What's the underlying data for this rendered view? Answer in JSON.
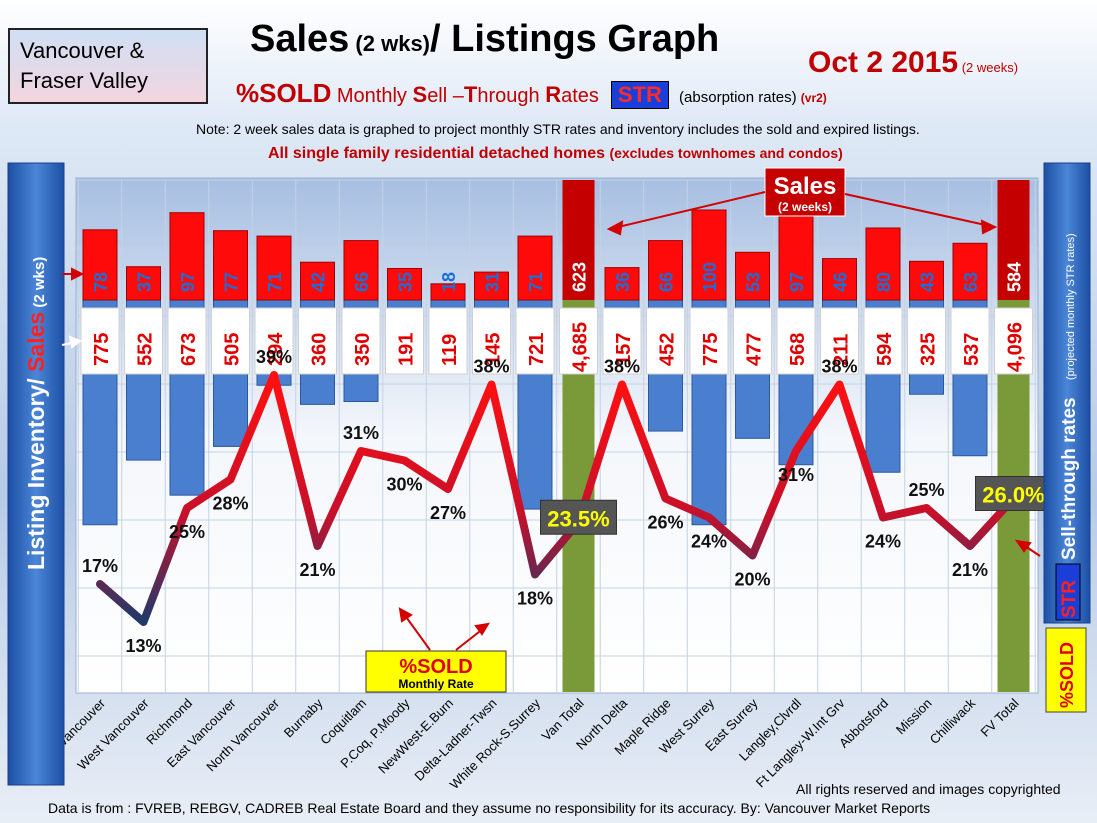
{
  "header": {
    "region": [
      "Vancouver &",
      "Fraser Valley"
    ],
    "title_main": "Sales",
    "title_small": " (2 wks)",
    "title_rest": "/ Listings Graph",
    "date_main": "Oct 2 2015",
    "date_small": " (2 weeks)",
    "subtitle_sold": "%SOLD",
    "subtitle_monthly": " Monthly ",
    "subtitle_s": "S",
    "subtitle_ell": "ell –",
    "subtitle_t": "T",
    "subtitle_hrough": "hrough ",
    "subtitle_r": "R",
    "subtitle_ates": "ates",
    "str_badge": "STR",
    "absorption": " (absorption rates) ",
    "version": "(vr2)",
    "note": "Note: 2 week sales data is graphed to project monthly STR rates and inventory includes the sold and expired listings.",
    "scope_main": "All single family residential detached homes ",
    "scope_small": "(excludes townhomes and condos)"
  },
  "footer": {
    "rights": "All rights reserved and  images copyrighted",
    "source": "Data is from : FVREB, REBGV, CADREB Real Estate Board and they assume no responsibility  for its accuracy. By: Vancouver Market Reports"
  },
  "colors": {
    "sales_bar": "#ff0a0a",
    "total_sales_bar": "#c40000",
    "inventory_bar": "#4a7fcf",
    "total_inventory_bar": "#7a9a3a",
    "line_high": "#ff1010",
    "line_low": "#2a3a6a",
    "panel": "#2e5fb5"
  },
  "chart_data": {
    "type": "bar",
    "categories": [
      "Vancouver",
      "West Vancouver",
      "Richmond",
      "East Vancouver",
      "North Vancouver",
      "Burnaby",
      "Coquitlam",
      "P.Coq, P.Moody",
      "NewWest-E.Burn",
      "Delta-Ladner-Twsn",
      "White Rock-S.Surrey",
      "Van Total",
      "North Delta",
      "Maple Ridge",
      "West Surrey",
      "East Surrey",
      "Langley,Clvrdl",
      "Ft Langley-W.Int Grv",
      "Abbotsford",
      "Mission",
      "Chilliwack",
      "FV Total"
    ],
    "series": [
      {
        "name": "Sales",
        "values": [
          78,
          37,
          97,
          77,
          71,
          42,
          66,
          35,
          18,
          31,
          71,
          623,
          36,
          66,
          100,
          53,
          97,
          46,
          80,
          43,
          63,
          584
        ]
      },
      {
        "name": "Listing Inventory",
        "values": [
          775,
          552,
          673,
          505,
          294,
          360,
          350,
          191,
          119,
          145,
          721,
          4685,
          157,
          452,
          775,
          477,
          568,
          211,
          594,
          325,
          537,
          4096
        ]
      },
      {
        "name": "%SOLD",
        "values": [
          17,
          13,
          25,
          28,
          39,
          21,
          31,
          30,
          27,
          38,
          18,
          23.5,
          38,
          26,
          24,
          20,
          31,
          38,
          24,
          25,
          21,
          26.0
        ]
      }
    ],
    "inventory_labels": [
      "775",
      "552",
      "673",
      "505",
      "294",
      "360",
      "350",
      "191",
      "119",
      "145",
      "721",
      "4,685",
      "157",
      "452",
      "775",
      "477",
      "568",
      "211",
      "594",
      "325",
      "537",
      "4,096"
    ],
    "percent_labels": [
      "17%",
      "13%",
      "25%",
      "28%",
      "39%",
      "21%",
      "31%",
      "30%",
      "27%",
      "38%",
      "18%",
      "23.5%",
      "38%",
      "26%",
      "24%",
      "20%",
      "31%",
      "38%",
      "24%",
      "25%",
      "21%",
      "26.0%"
    ],
    "sales_label_colors": [
      "#1a6fd8",
      "#1a6fd8",
      "#1a6fd8",
      "#1a6fd8",
      "#1a6fd8",
      "#1a6fd8",
      "#1a6fd8",
      "#1a6fd8",
      "#1a6fd8",
      "#1a6fd8",
      "#1a6fd8",
      "#ffffff",
      "#1a6fd8",
      "#1a6fd8",
      "#1a6fd8",
      "#1a6fd8",
      "#1a6fd8",
      "#1a6fd8",
      "#1a6fd8",
      "#1a6fd8",
      "#1a6fd8",
      "#ffffff"
    ],
    "total_indices": [
      11,
      21
    ],
    "left_axis_label_part1": "Listing Inventory/ ",
    "left_axis_label_part2": "Sales",
    "left_axis_label_part3": " (2  wks)",
    "right_axis_label": "Sell-through rates",
    "right_axis_sublabel": "(projected monthly  STR rates)",
    "right_str": "STR",
    "right_sold": "%SOLD",
    "sales_callout": "Sales",
    "sales_callout_sub": "(2 weeks)",
    "sold_callout": "%SOLD",
    "sold_callout_sub": "Monthly Rate"
  }
}
